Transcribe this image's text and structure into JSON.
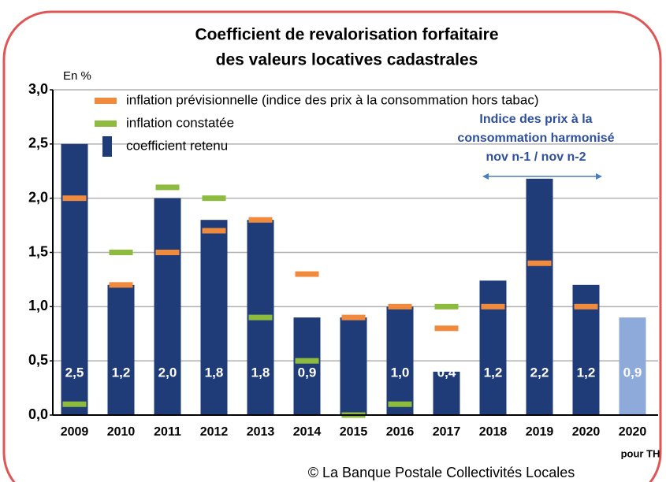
{
  "chart_data": {
    "type": "bar",
    "title": [
      "Coefficient de revalorisation forfaitaire",
      "des valeurs locatives cadastrales"
    ],
    "ylabel": "En %",
    "categories": [
      "2009",
      "2010",
      "2011",
      "2012",
      "2013",
      "2014",
      "2015",
      "2016",
      "2017",
      "2018",
      "2019",
      "2020",
      "2020"
    ],
    "category_sublabels": [
      null,
      null,
      null,
      null,
      null,
      null,
      null,
      null,
      null,
      null,
      null,
      null,
      "pour TH"
    ],
    "series": [
      {
        "name": "coefficient retenu",
        "type": "bar",
        "color": "#1f3c78",
        "colors": [
          "#1f3c78",
          "#1f3c78",
          "#1f3c78",
          "#1f3c78",
          "#1f3c78",
          "#1f3c78",
          "#1f3c78",
          "#1f3c78",
          "#1f3c78",
          "#1f3c78",
          "#1f3c78",
          "#1f3c78",
          "#8eaadb"
        ],
        "values": [
          2.5,
          1.2,
          2.0,
          1.8,
          1.8,
          0.9,
          0.9,
          1.0,
          0.4,
          1.24,
          2.18,
          1.2,
          0.9
        ],
        "value_labels": [
          "2,5",
          "1,2",
          "2,0",
          "1,8",
          "1,8",
          "0,9",
          null,
          "1,0",
          "0,4",
          "1,2",
          "2,2",
          "1,2",
          "0,9"
        ]
      },
      {
        "name": "inflation prévisionnelle (indice des prix à la consommation hors tabac)",
        "type": "dash",
        "color": "#f08a3c",
        "values": [
          2.0,
          1.2,
          1.5,
          1.7,
          1.8,
          1.3,
          0.9,
          1.0,
          0.8,
          1.0,
          1.4,
          1.0,
          null
        ]
      },
      {
        "name": "inflation constatée",
        "type": "dash",
        "color": "#8dbb3e",
        "values": [
          0.1,
          1.5,
          2.1,
          2.0,
          0.9,
          0.5,
          0.0,
          0.1,
          1.0,
          null,
          null,
          null,
          null
        ]
      }
    ],
    "legend_order": [
      1,
      2,
      0
    ],
    "ylim": [
      0,
      3
    ],
    "yticks": [
      {
        "value": 0,
        "label": "0,0"
      },
      {
        "value": 0.5,
        "label": "0,5"
      },
      {
        "value": 1,
        "label": "1,0"
      },
      {
        "value": 1.5,
        "label": "1,5"
      },
      {
        "value": 2,
        "label": "2,0"
      },
      {
        "value": 2.5,
        "label": "2,5"
      },
      {
        "value": 3,
        "label": "3,0"
      }
    ],
    "grid": true,
    "annotation": [
      "Indice des prix à la",
      "consommation harmonisé",
      "nov n-1 / nov n-2"
    ],
    "source": "© La Banque Postale Collectivités Locales"
  }
}
